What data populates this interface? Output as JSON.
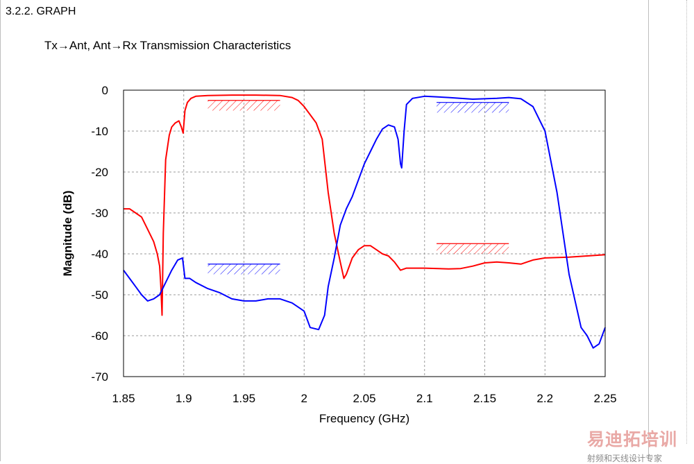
{
  "page": {
    "section_title": "3.2.2. GRAPH",
    "heading": "Tx→Ant, Ant→Rx Transmission Characteristics"
  },
  "watermark": {
    "line1": "易迪拓培训",
    "line2": "射频和天线设计专家"
  },
  "chart_data": {
    "type": "line",
    "title": "",
    "xlabel": "Frequency (GHz)",
    "ylabel": "Magnitude (dB)",
    "xlim": [
      1.85,
      2.25
    ],
    "ylim": [
      -70,
      0
    ],
    "xticks": [
      1.85,
      1.9,
      1.95,
      2.0,
      2.05,
      2.1,
      2.15,
      2.2,
      2.25
    ],
    "xtick_labels": [
      "1.85",
      "1.9",
      "1.95",
      "2",
      "2.05",
      "2.1",
      "2.15",
      "2.2",
      "2.25"
    ],
    "yticks": [
      0,
      -10,
      -20,
      -30,
      -40,
      -50,
      -60,
      -70
    ],
    "ytick_labels": [
      "0",
      "-10",
      "-20",
      "-30",
      "-40",
      "-50",
      "-60",
      "-70"
    ],
    "grid": true,
    "series": [
      {
        "color": "#ff0000",
        "x": [
          1.85,
          1.855,
          1.86,
          1.865,
          1.87,
          1.875,
          1.878,
          1.88,
          1.881,
          1.882,
          1.883,
          1.885,
          1.888,
          1.89,
          1.893,
          1.896,
          1.898,
          1.8995,
          1.901,
          1.903,
          1.906,
          1.91,
          1.92,
          1.94,
          1.96,
          1.98,
          1.99,
          1.995,
          2.0,
          2.005,
          2.01,
          2.015,
          2.02,
          2.025,
          2.03,
          2.033,
          2.035,
          2.04,
          2.045,
          2.05,
          2.055,
          2.06,
          2.065,
          2.07,
          2.075,
          2.08,
          2.085,
          2.1,
          2.12,
          2.13,
          2.14,
          2.15,
          2.16,
          2.17,
          2.18,
          2.19,
          2.2,
          2.22,
          2.25
        ],
        "y": [
          -29,
          -29,
          -30,
          -31,
          -34,
          -37,
          -40,
          -43,
          -48,
          -55,
          -35,
          -17,
          -11,
          -9,
          -8,
          -7.5,
          -9,
          -10.5,
          -5,
          -3,
          -2,
          -1.5,
          -1.3,
          -1.2,
          -1.2,
          -1.3,
          -1.8,
          -2.5,
          -4,
          -6,
          -8,
          -12,
          -25,
          -35,
          -42,
          -46,
          -45,
          -41,
          -39,
          -38,
          -38,
          -39,
          -40,
          -40.5,
          -42,
          -44,
          -43.5,
          -43.5,
          -43.7,
          -43.6,
          -43,
          -42.2,
          -42,
          -42.2,
          -42.5,
          -41.5,
          -41,
          -40.8,
          -40.2
        ]
      },
      {
        "color": "#0000ff",
        "x": [
          1.85,
          1.855,
          1.86,
          1.865,
          1.87,
          1.875,
          1.88,
          1.885,
          1.89,
          1.895,
          1.899,
          1.901,
          1.905,
          1.91,
          1.92,
          1.93,
          1.94,
          1.95,
          1.96,
          1.97,
          1.98,
          1.99,
          1.995,
          2.0,
          2.005,
          2.012,
          2.017,
          2.02,
          2.025,
          2.03,
          2.035,
          2.04,
          2.045,
          2.05,
          2.055,
          2.06,
          2.065,
          2.07,
          2.075,
          2.078,
          2.08,
          2.081,
          2.083,
          2.085,
          2.09,
          2.1,
          2.12,
          2.14,
          2.16,
          2.17,
          2.18,
          2.19,
          2.2,
          2.21,
          2.22,
          2.23,
          2.235,
          2.24,
          2.245,
          2.25
        ],
        "y": [
          -44,
          -46,
          -48,
          -50,
          -51.5,
          -51,
          -50,
          -47,
          -44,
          -41.5,
          -41,
          -46,
          -46,
          -47,
          -48.5,
          -49.5,
          -51,
          -51.5,
          -51.5,
          -51,
          -51,
          -52,
          -53,
          -54,
          -58,
          -58.5,
          -55,
          -48,
          -41,
          -33,
          -29,
          -26,
          -22,
          -18,
          -15,
          -12,
          -9.5,
          -8.5,
          -9,
          -12,
          -18,
          -19,
          -10,
          -3.5,
          -2,
          -1.5,
          -1.8,
          -2.2,
          -2.0,
          -1.8,
          -2.1,
          -4,
          -10,
          -25,
          -45,
          -58,
          -60,
          -63,
          -62,
          -58
        ]
      }
    ],
    "annotations": [
      {
        "label": "Tx passband spec (hatched)",
        "color": "#ff0000",
        "x": [
          1.92,
          1.98
        ],
        "y": [
          -2.5,
          -5
        ]
      },
      {
        "label": "Rx rejection spec (hatched)",
        "color": "#0000ff",
        "x": [
          1.92,
          1.98
        ],
        "y": [
          -42.5,
          -45
        ]
      },
      {
        "label": "Rx passband spec (hatched)",
        "color": "#0000ff",
        "x": [
          2.11,
          2.17
        ],
        "y": [
          -3,
          -5.5
        ]
      },
      {
        "label": "Tx rejection spec (hatched)",
        "color": "#ff0000",
        "x": [
          2.11,
          2.17
        ],
        "y": [
          -37.5,
          -40
        ]
      }
    ]
  }
}
